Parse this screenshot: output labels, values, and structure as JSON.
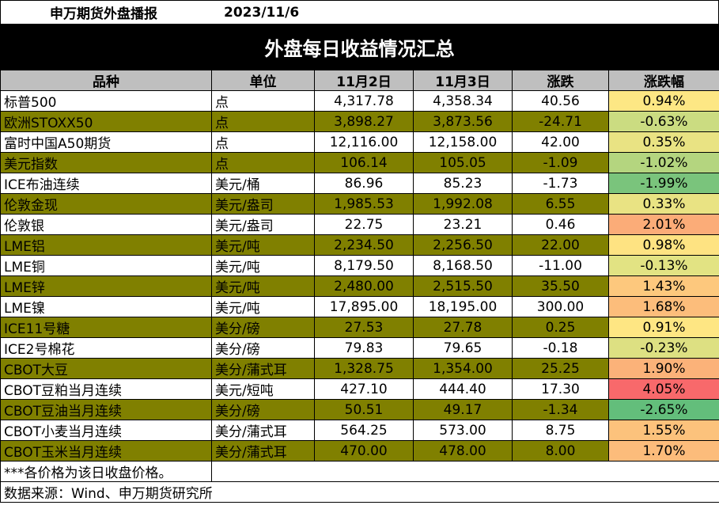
{
  "header": {
    "brand": "申万期货外盘播报",
    "date": "2023/11/6"
  },
  "title": "外盘每日收益情况汇总",
  "columns": [
    "品种",
    "单位",
    "11月2日",
    "11月3日",
    "涨跌",
    "涨跌幅"
  ],
  "rows": [
    {
      "name": "标普500",
      "unit": "点",
      "d1": "4,317.78",
      "d2": "4,358.34",
      "chg": "40.56",
      "pct": "0.94%",
      "pct_color": "#fde784"
    },
    {
      "name": "欧洲STOXX50",
      "unit": "点",
      "d1": "3,898.27",
      "d2": "3,873.56",
      "chg": "-24.71",
      "pct": "-0.63%",
      "pct_color": "#cbdc81"
    },
    {
      "name": "富时中国A50期货",
      "unit": "点",
      "d1": "12,116.00",
      "d2": "12,158.00",
      "chg": "42.00",
      "pct": "0.35%",
      "pct_color": "#e9e383"
    },
    {
      "name": "美元指数",
      "unit": "点",
      "d1": "106.14",
      "d2": "105.05",
      "chg": "-1.09",
      "pct": "-1.02%",
      "pct_color": "#b4d57f"
    },
    {
      "name": "ICE布油连续",
      "unit": "美元/桶",
      "d1": "86.96",
      "d2": "85.23",
      "chg": "-1.73",
      "pct": "-1.99%",
      "pct_color": "#7ac47c"
    },
    {
      "name": "伦敦金现",
      "unit": "美元/盎司",
      "d1": "1,985.53",
      "d2": "1,992.08",
      "chg": "6.55",
      "pct": "0.33%",
      "pct_color": "#e9e383"
    },
    {
      "name": "伦敦银",
      "unit": "美元/盎司",
      "d1": "22.75",
      "d2": "23.21",
      "chg": "0.46",
      "pct": "2.01%",
      "pct_color": "#fbac78"
    },
    {
      "name": "LME铝",
      "unit": "美元/吨",
      "d1": "2,234.50",
      "d2": "2,256.50",
      "chg": "22.00",
      "pct": "0.98%",
      "pct_color": "#fee382"
    },
    {
      "name": "LME铜",
      "unit": "美元/吨",
      "d1": "8,179.50",
      "d2": "8,168.50",
      "chg": "-11.00",
      "pct": "-0.13%",
      "pct_color": "#e2e383"
    },
    {
      "name": "LME锌",
      "unit": "美元/吨",
      "d1": "2,480.00",
      "d2": "2,515.50",
      "chg": "35.50",
      "pct": "1.43%",
      "pct_color": "#fdc87d"
    },
    {
      "name": "LME镍",
      "unit": "美元/吨",
      "d1": "17,895.00",
      "d2": "18,195.00",
      "chg": "300.00",
      "pct": "1.68%",
      "pct_color": "#fcbd7b"
    },
    {
      "name": "ICE11号糖",
      "unit": "美分/磅",
      "d1": "27.53",
      "d2": "27.78",
      "chg": "0.25",
      "pct": "0.91%",
      "pct_color": "#fee683"
    },
    {
      "name": "ICE2号棉花",
      "unit": "美分/磅",
      "d1": "79.83",
      "d2": "79.65",
      "chg": "-0.18",
      "pct": "-0.23%",
      "pct_color": "#dde082"
    },
    {
      "name": "CBOT大豆",
      "unit": "美分/蒲式耳",
      "d1": "1,328.75",
      "d2": "1,354.00",
      "chg": "25.25",
      "pct": "1.90%",
      "pct_color": "#fbb279"
    },
    {
      "name": "CBOT豆粕当月连续",
      "unit": "美元/短吨",
      "d1": "427.10",
      "d2": "444.40",
      "chg": "17.30",
      "pct": "4.05%",
      "pct_color": "#f8696b"
    },
    {
      "name": "CBOT豆油当月连续",
      "unit": "美分/磅",
      "d1": "50.51",
      "d2": "49.17",
      "chg": "-1.34",
      "pct": "-2.65%",
      "pct_color": "#63be7b"
    },
    {
      "name": "CBOT小麦当月连续",
      "unit": "美分/蒲式耳",
      "d1": "564.25",
      "d2": "573.00",
      "chg": "8.75",
      "pct": "1.55%",
      "pct_color": "#fcc27c"
    },
    {
      "name": "CBOT玉米当月连续",
      "unit": "美分/蒲式耳",
      "d1": "470.00",
      "d2": "478.00",
      "chg": "8.00",
      "pct": "1.70%",
      "pct_color": "#fcbc7b"
    }
  ],
  "notes": {
    "price_note": "***各价格为该日收盘价格。",
    "source": "数据来源：Wind、申万期货研究所"
  },
  "colors": {
    "shade": "#808000",
    "header_bg": "#bfbfbf",
    "banner_bg": "#000000"
  }
}
